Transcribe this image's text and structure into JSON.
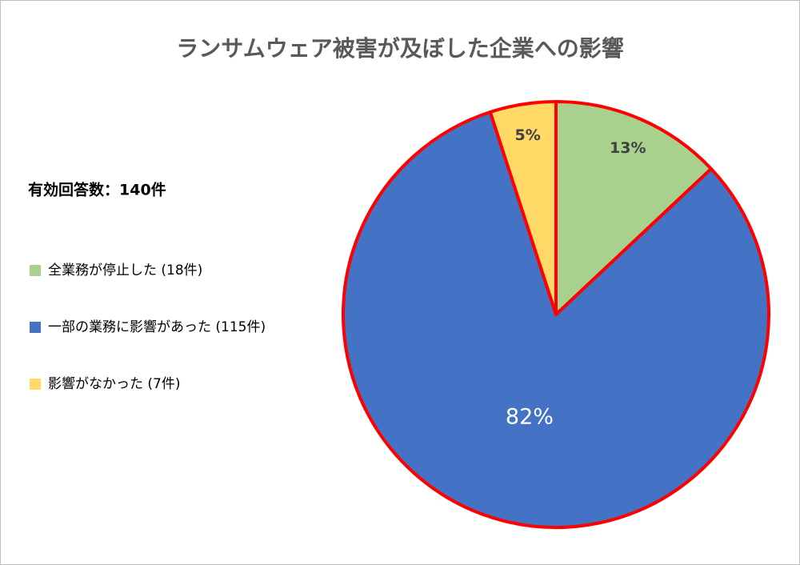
{
  "chart_data": {
    "type": "pie",
    "title": "ランサムウェア被害が及ぼした企業への影響",
    "annotation": "有効回答数：140件",
    "categories": [
      "全業務が停止した (18件)",
      "一部の業務に影響があった (115件)",
      "影響がなかった (7件)"
    ],
    "values": [
      13,
      82,
      5
    ],
    "value_labels": [
      "13%",
      "82%",
      "5%"
    ],
    "colors": [
      "#a9d18e",
      "#4472c4",
      "#ffd966"
    ],
    "edge_color": "#ff0000",
    "legend": "left"
  }
}
